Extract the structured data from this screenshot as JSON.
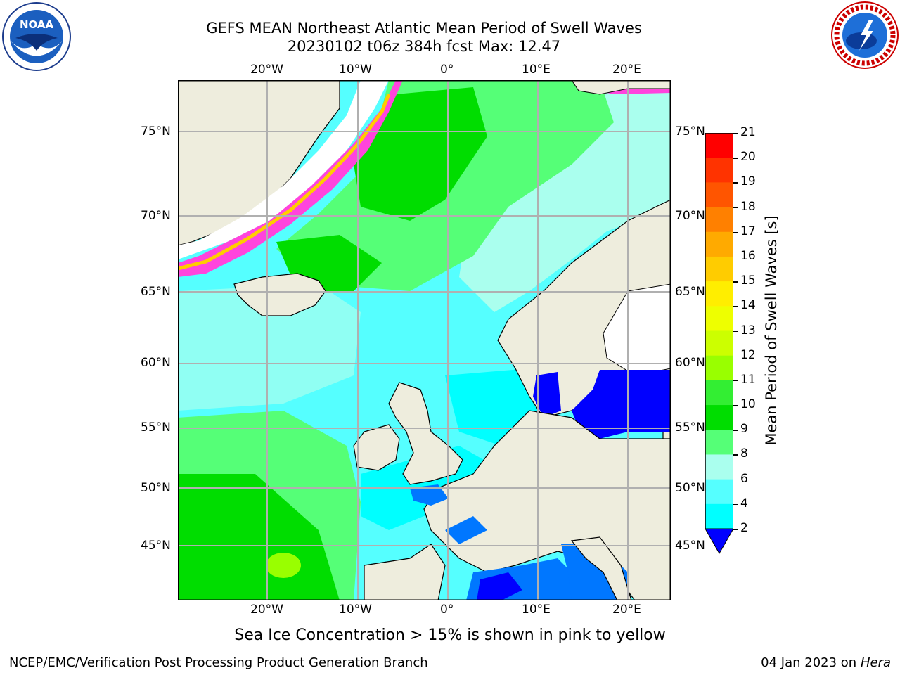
{
  "header": {
    "title_line1": "GEFS MEAN Northeast Atlantic Mean Period of Swell Waves",
    "title_line2": "20230102 t06z 384h fcst   Max: 12.47"
  },
  "map": {
    "lon_labels": [
      "20°W",
      "10°W",
      "0°",
      "10°E",
      "20°E"
    ],
    "lat_labels": [
      "75°N",
      "70°N",
      "65°N",
      "60°N",
      "55°N",
      "50°N",
      "45°N"
    ],
    "regions": [
      "Greenland",
      "Iceland",
      "Svalbard",
      "Scandinavia",
      "British Isles",
      "Iberia",
      "France",
      "Italy"
    ]
  },
  "colorbar": {
    "label": "Mean Period of Swell Waves [s]",
    "ticks": [
      "21",
      "20",
      "19",
      "18",
      "17",
      "16",
      "15",
      "14",
      "13",
      "12",
      "11",
      "10",
      "9",
      "8",
      "6",
      "4",
      "2"
    ],
    "colors": [
      "#ff0000",
      "#ff3300",
      "#ff5500",
      "#ff8000",
      "#ffaa00",
      "#ffcc00",
      "#ffee00",
      "#eeff00",
      "#ccff00",
      "#99ff00",
      "#33ee33",
      "#00dd00",
      "#55ff77",
      "#aaffee",
      "#55ffff",
      "#00ffff",
      "#00ccff",
      "#0077ff",
      "#0000ff"
    ]
  },
  "note": "Sea Ice Concentration > 15% is shown in pink to yellow",
  "footer": {
    "left": "NCEP/EMC/Verification Post Processing Product Generation Branch",
    "right_prefix": "04 Jan 2023 on ",
    "right_host": "Hera"
  },
  "logos": {
    "noaa_text": "NOAA",
    "nws_text": "NATIONAL WEATHER SERVICE"
  }
}
